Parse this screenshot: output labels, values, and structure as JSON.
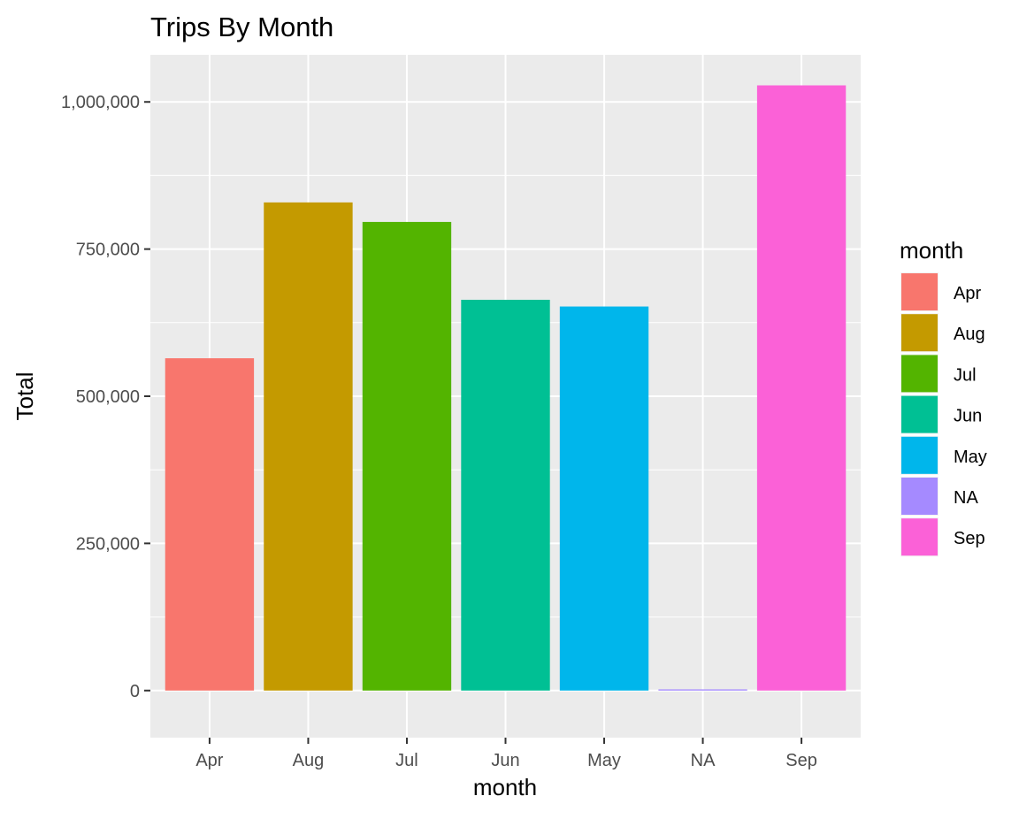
{
  "chart_data": {
    "type": "bar",
    "title": "Trips By Month",
    "xlabel": "month",
    "ylabel": "Total",
    "categories": [
      "Apr",
      "Aug",
      "Jul",
      "Jun",
      "May",
      "NA",
      "Sep"
    ],
    "values": [
      564516,
      829275,
      796121,
      663844,
      652435,
      2000,
      1028136
    ],
    "colors": [
      "#F8766D",
      "#C49A00",
      "#53B400",
      "#00C094",
      "#00B6EB",
      "#A58AFF",
      "#FB61D7"
    ],
    "ylim": [
      -80000,
      1080000
    ],
    "yticks": [
      0,
      250000,
      500000,
      750000,
      1000000
    ],
    "ytick_labels": [
      "0",
      "250,000",
      "500,000",
      "750,000",
      "1,000,000"
    ],
    "grid": true,
    "legend": {
      "title": "month",
      "placement": "right",
      "entries": [
        "Apr",
        "Aug",
        "Jul",
        "Jun",
        "May",
        "NA",
        "Sep"
      ]
    }
  }
}
